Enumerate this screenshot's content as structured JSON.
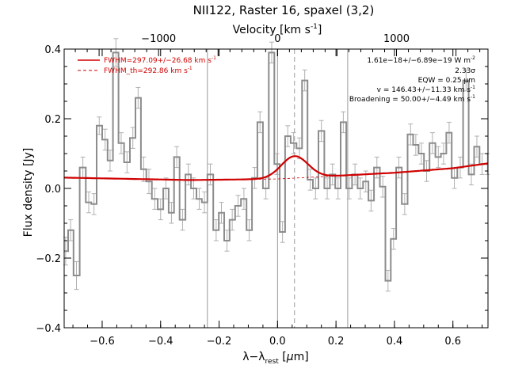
{
  "chart_data": {
    "type": "line",
    "title": "NII122, Raster 16, spaxel (3,2)",
    "xlabel_main": "λ−λ",
    "xlabel_sub": "rest",
    "xlabel_units_pre": " [",
    "xlabel_mu": "μ",
    "xlabel_units_post": "m]",
    "ylabel": "Flux density [Jy]",
    "top_axis_label": "Velocity [km s",
    "top_axis_label_sup": "-1",
    "top_axis_label_end": "]",
    "xlim": [
      -0.73,
      0.72
    ],
    "ylim": [
      -0.4,
      0.4
    ],
    "x_ticks": [
      "−0.6",
      "−0.4",
      "−0.2",
      "0.0",
      "0.2",
      "0.4",
      "0.6"
    ],
    "x_tick_values": [
      -0.6,
      -0.4,
      -0.2,
      0.0,
      0.2,
      0.4,
      0.6
    ],
    "y_ticks": [
      "−0.4",
      "−0.2",
      "0.0",
      "0.2",
      "0.4"
    ],
    "y_tick_values": [
      -0.4,
      -0.2,
      0.0,
      0.2,
      0.4
    ],
    "top_ticks": [
      "−1000",
      "0",
      "1000"
    ],
    "top_tick_values": [
      -1000,
      0,
      1000
    ],
    "vertical_lines": [
      -0.24,
      0.0,
      0.24
    ],
    "dashed_line_x": 0.058,
    "legend": [
      {
        "label": "FWHM=297.09+/−26.68 km s",
        "sup": "-1",
        "style": "solid"
      },
      {
        "label": "FWHM_th=292.86 km s",
        "sup": "-1",
        "style": "dashed"
      }
    ],
    "annotations": [
      {
        "text": "1.61e−18+/−6.89e−19 W m",
        "sup": "-2"
      },
      {
        "text": "2.33σ",
        "sup": ""
      },
      {
        "text": "EQW = 0.25 μm",
        "sup": ""
      },
      {
        "text": "v = 146.43+/−11.33 km s",
        "sup": "-1"
      },
      {
        "text": "Broadening = 50.00+/−4.49 km s",
        "sup": "-1"
      }
    ],
    "spectrum": {
      "x": [
        -0.725,
        -0.708,
        -0.688,
        -0.666,
        -0.646,
        -0.628,
        -0.61,
        -0.59,
        -0.573,
        -0.553,
        -0.535,
        -0.515,
        -0.495,
        -0.477,
        -0.458,
        -0.44,
        -0.42,
        -0.4,
        -0.382,
        -0.363,
        -0.345,
        -0.325,
        -0.305,
        -0.287,
        -0.268,
        -0.25,
        -0.23,
        -0.21,
        -0.192,
        -0.173,
        -0.155,
        -0.135,
        -0.115,
        -0.097,
        -0.078,
        -0.06,
        -0.04,
        -0.02,
        -0.002,
        0.017,
        0.035,
        0.055,
        0.075,
        0.093,
        0.112,
        0.13,
        0.15,
        0.17,
        0.188,
        0.207,
        0.225,
        0.245,
        0.265,
        0.283,
        0.302,
        0.32,
        0.34,
        0.36,
        0.378,
        0.397,
        0.415,
        0.435,
        0.455,
        0.473,
        0.492,
        0.51,
        0.53,
        0.55,
        0.568,
        0.587,
        0.605,
        0.625,
        0.645,
        0.663,
        0.682,
        0.7,
        0.718
      ],
      "y": [
        -0.18,
        -0.12,
        -0.25,
        0.06,
        -0.04,
        -0.045,
        0.18,
        0.14,
        0.08,
        0.39,
        0.13,
        0.075,
        0.145,
        0.26,
        0.055,
        0.02,
        -0.03,
        -0.06,
        0.0,
        -0.07,
        0.09,
        -0.09,
        0.04,
        0.0,
        -0.03,
        -0.04,
        0.04,
        -0.12,
        -0.07,
        -0.15,
        -0.09,
        -0.05,
        -0.03,
        -0.12,
        0.03,
        0.19,
        0.0,
        0.39,
        0.07,
        -0.125,
        0.15,
        0.13,
        0.115,
        0.31,
        0.025,
        0.0,
        0.165,
        0.0,
        0.04,
        0.0,
        0.19,
        0.0,
        0.04,
        0.0,
        0.02,
        -0.035,
        0.06,
        0.005,
        -0.265,
        -0.145,
        0.06,
        -0.045,
        0.155,
        0.125,
        0.1,
        0.05,
        0.13,
        0.09,
        0.1,
        0.16,
        0.03,
        0.06,
        0.31,
        0.04,
        0.12,
        0.07,
        0.07
      ],
      "err": [
        0.04,
        0.03,
        0.04,
        0.03,
        0.03,
        0.03,
        0.025,
        0.03,
        0.03,
        0.04,
        0.03,
        0.03,
        0.03,
        0.03,
        0.035,
        0.035,
        0.03,
        0.03,
        0.03,
        0.03,
        0.03,
        0.03,
        0.03,
        0.03,
        0.03,
        0.03,
        0.03,
        0.03,
        0.03,
        0.03,
        0.03,
        0.03,
        0.03,
        0.03,
        0.03,
        0.03,
        0.03,
        0.03,
        0.03,
        0.03,
        0.03,
        0.03,
        0.03,
        0.03,
        0.03,
        0.03,
        0.03,
        0.03,
        0.03,
        0.03,
        0.03,
        0.03,
        0.03,
        0.03,
        0.03,
        0.03,
        0.03,
        0.03,
        0.03,
        0.03,
        0.03,
        0.03,
        0.03,
        0.03,
        0.03,
        0.03,
        0.03,
        0.03,
        0.03,
        0.03,
        0.03,
        0.03,
        0.03,
        0.03,
        0.03,
        0.03,
        0.03
      ]
    },
    "fit": {
      "baseline_x": [
        -0.73,
        -0.3,
        0.0,
        0.2,
        0.4,
        0.6,
        0.72
      ],
      "baseline_y": [
        0.031,
        0.024,
        0.027,
        0.036,
        0.045,
        0.058,
        0.072
      ],
      "gauss_center": 0.058,
      "gauss_amp": 0.063,
      "gauss_sigma": 0.046
    },
    "colors": {
      "spectrum": "#8c8c8c",
      "fit": "#d00000",
      "vline": "#999999",
      "axis": "#000000"
    }
  }
}
